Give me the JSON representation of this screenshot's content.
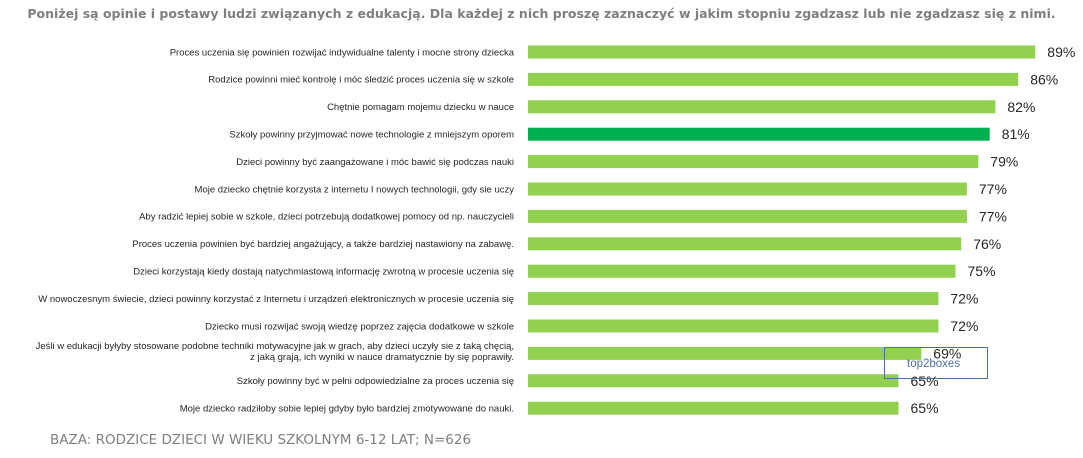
{
  "chart_data": {
    "type": "bar",
    "orientation": "horizontal",
    "title": "Poniżej są opinie i postawy ludzi związanych z edukacją. Dla każdej z nich proszę zaznaczyć w jakim stopniu zgadzasz lub nie zgadzasz się z nimi.",
    "categories": [
      [
        "Proces uczenia się powinien rozwijać indywidualne talenty i mocne strony dziecka"
      ],
      [
        "Rodzice powinni mieć kontrolę i móc śledzić proces uczenia się w szkole"
      ],
      [
        "Chętnie pomagam mojemu dziecku w nauce"
      ],
      [
        "Szkoły powinny przyjmować nowe technologie z mniejszym oporem"
      ],
      [
        "Dzieci powinny być zaangażowane i móc bawić się podczas nauki"
      ],
      [
        "Moje dziecko chętnie korzysta z internetu I nowych technologii, gdy sie uczy"
      ],
      [
        "Aby radzić lepiej sobie w szkole, dzieci potrzebują dodatkowej pomocy od np. nauczycieli"
      ],
      [
        "Proces uczenia powinien być bardziej angażujący, a także bardziej nastawiony na zabawę."
      ],
      [
        "Dzieci korzystają kiedy dostają natychmiastową informację zwrotną w procesie uczenia się"
      ],
      [
        "W nowoczesnym świecie, dzieci powinny korzystać z Internetu i urządzeń elektronicznych w procesie uczenia się"
      ],
      [
        "Dziecko musi rozwijać swoją wiedzę poprzez zajęcia dodatkowe w szkole"
      ],
      [
        "Jeśli w edukacji byłyby stosowane podobne techniki motywacyjne jak w grach, aby dzieci uczyły sie z taką chęcią,",
        "z jaką grają, ich wyniki w nauce dramatycznie by się poprawiły."
      ],
      [
        "Szkoły powinny być w pełni odpowiedzialne za proces uczenia się"
      ],
      [
        "Moje dziecko radziłoby sobie lepiej gdyby było bardziej zmotywowane do nauki."
      ]
    ],
    "values": [
      89,
      86,
      82,
      81,
      79,
      77,
      77,
      76,
      75,
      72,
      72,
      69,
      65,
      65
    ],
    "value_labels": [
      "89%",
      "86%",
      "82%",
      "81%",
      "79%",
      "77%",
      "77%",
      "76%",
      "75%",
      "72%",
      "72%",
      "69%",
      "65%",
      "65%"
    ],
    "highlight_index": 3,
    "xlim": [
      0,
      100
    ],
    "legend": {
      "label": "top2boxes",
      "placement": "bottom-right"
    },
    "grid": false,
    "colors": {
      "bar": "#92d050",
      "highlight": "#00b050",
      "title": "#7f7f7f",
      "legend_border": "#4a6fa5"
    }
  },
  "footer": "BAZA: RODZICE DZIECI W WIEKU SZKOLNYM 6-12 LAT; N=626"
}
